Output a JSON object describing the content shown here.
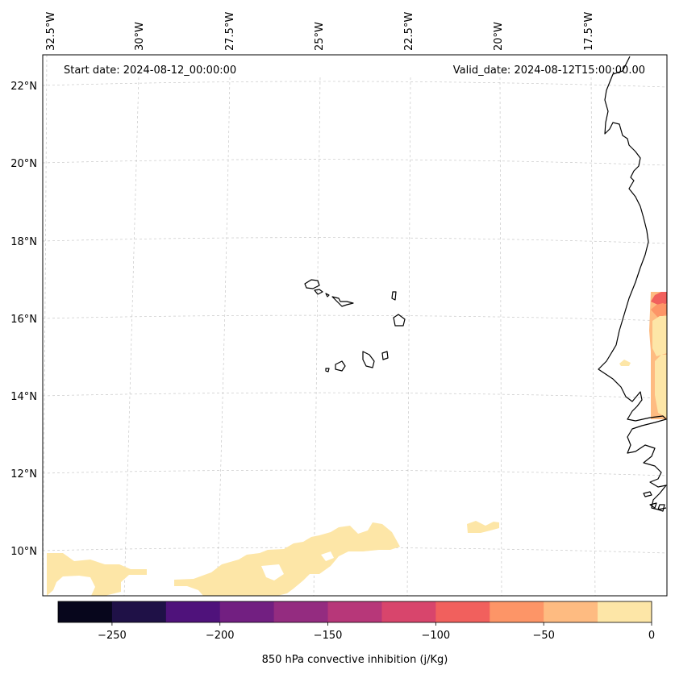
{
  "map": {
    "start_label": "Start date: 2024-08-12_00:00:00",
    "valid_label": "Valid_date: 2024-08-12T15:00:00.00",
    "longitude_labels": [
      "32.5°W",
      "30°W",
      "27.5°W",
      "25°W",
      "22.5°W",
      "20°W",
      "17.5°W"
    ],
    "latitude_labels": [
      "22°N",
      "20°N",
      "18°N",
      "16°N",
      "14°N",
      "12°N",
      "10°N"
    ],
    "variable": "850 hPa convective inhibition",
    "units": "j/Kg"
  },
  "colorbar": {
    "label": "850 hPa convective inhibition (j/Kg)",
    "min": -275,
    "max": 0,
    "tick_values": [
      -250,
      -200,
      -150,
      -100,
      -50,
      0
    ],
    "tick_labels": [
      "−250",
      "−200",
      "−150",
      "−100",
      "−50",
      "0"
    ],
    "levels": [
      -275,
      -250,
      -225,
      -200,
      -175,
      -150,
      -125,
      -100,
      -75,
      -50,
      -25,
      0
    ],
    "colors": [
      "#07061c",
      "#1f1147",
      "#4f127b",
      "#721f81",
      "#942c80",
      "#b73779",
      "#d8456c",
      "#f1605d",
      "#fd9567",
      "#febb81",
      "#fde6a7"
    ]
  }
}
